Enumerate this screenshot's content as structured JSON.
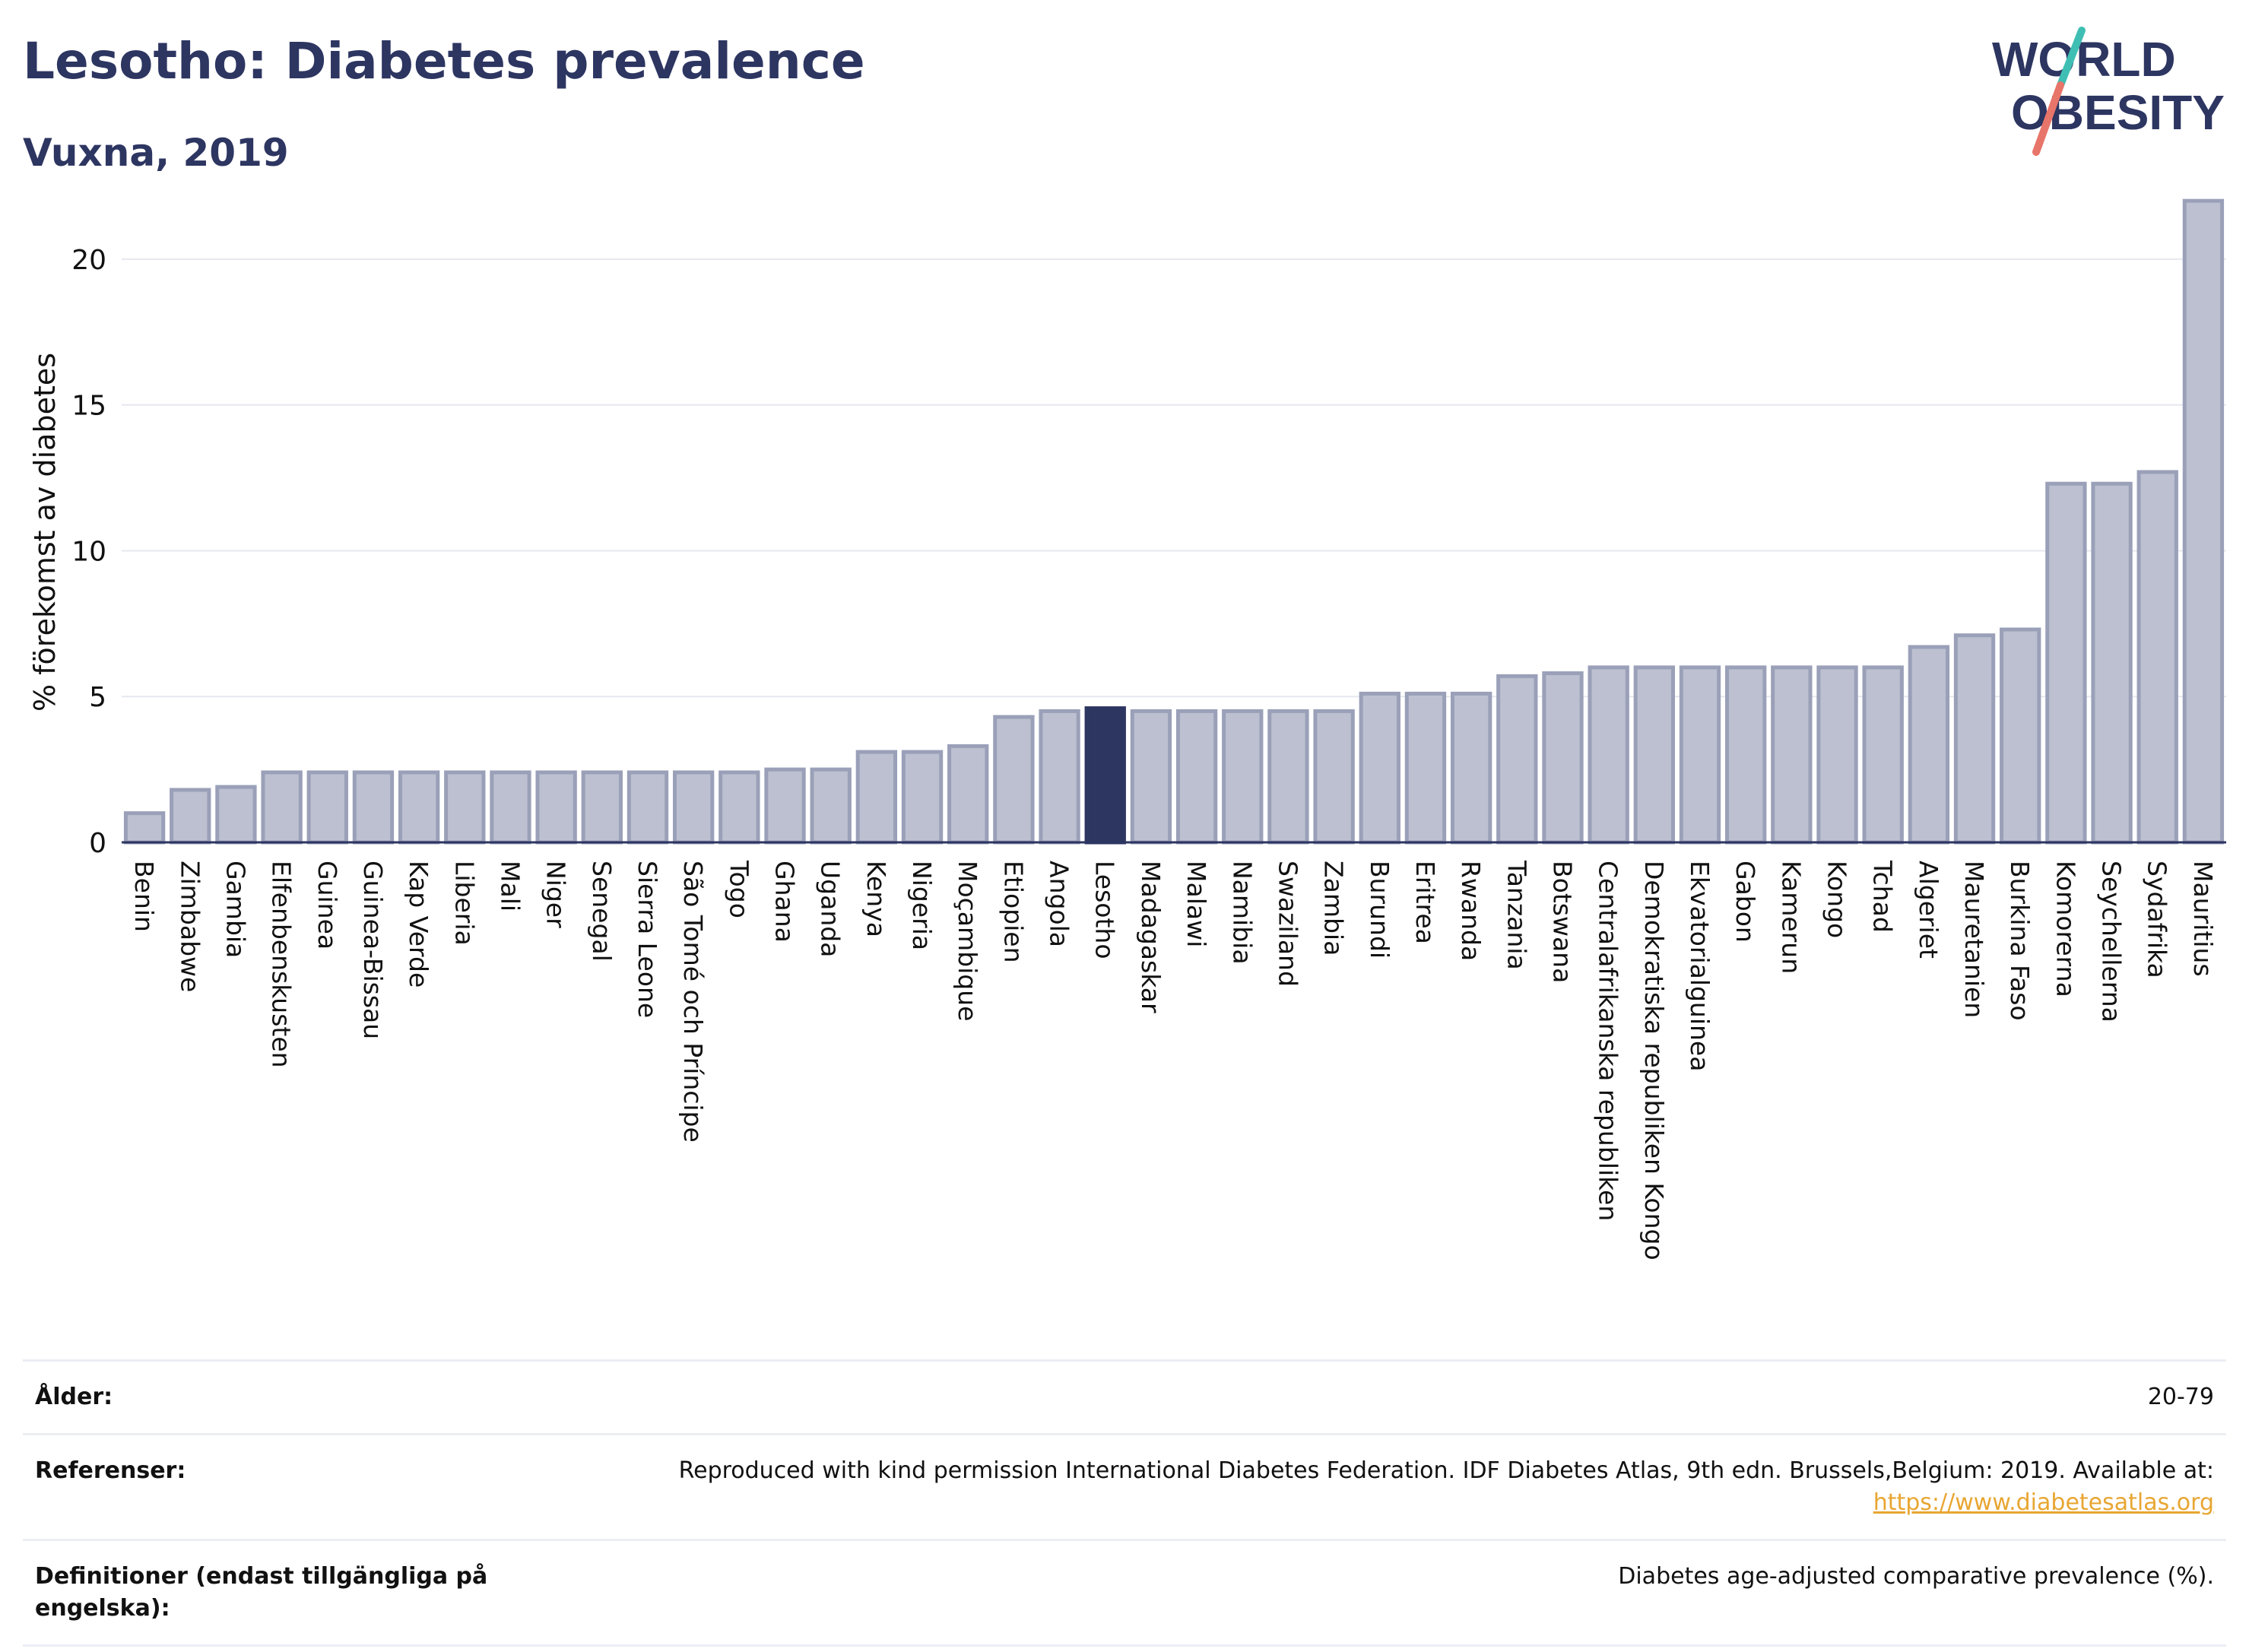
{
  "header": {
    "title": "Lesotho: Diabetes prevalence",
    "subtitle": "Vuxna, 2019",
    "logo_line1": "WORLD",
    "logo_line2": "OBESITY"
  },
  "colors": {
    "bar": "#bcc0d0",
    "bar_border": "#9aa0b8",
    "highlight": "#2d3561",
    "grid": "#e6e8ef",
    "logo_teal": "#3fbfb3",
    "logo_coral": "#e8756a",
    "link": "#e8a632"
  },
  "chart_data": {
    "type": "bar",
    "ylabel": "% förekomst av diabetes",
    "ylim": [
      0,
      22.5
    ],
    "yticks": [
      0,
      5,
      10,
      15,
      20
    ],
    "grid": true,
    "highlight": "Lesotho",
    "categories": [
      "Benin",
      "Zimbabwe",
      "Gambia",
      "Elfenbenskusten",
      "Guinea",
      "Guinea-Bissau",
      "Kap Verde",
      "Liberia",
      "Mali",
      "Niger",
      "Senegal",
      "Sierra Leone",
      "São Tomé och Príncipe",
      "Togo",
      "Ghana",
      "Uganda",
      "Kenya",
      "Nigeria",
      "Moçambique",
      "Etiopien",
      "Angola",
      "Lesotho",
      "Madagaskar",
      "Malawi",
      "Namibia",
      "Swaziland",
      "Zambia",
      "Burundi",
      "Eritrea",
      "Rwanda",
      "Tanzania",
      "Botswana",
      "Centralafrikanska republiken",
      "Demokratiska republiken Kongo",
      "Ekvatorialguinea",
      "Gabon",
      "Kamerun",
      "Kongo",
      "Tchad",
      "Algeriet",
      "Mauretanien",
      "Burkina Faso",
      "Komorerna",
      "Seychellerna",
      "Sydafrika",
      "Mauritius"
    ],
    "values": [
      1.0,
      1.8,
      1.9,
      2.4,
      2.4,
      2.4,
      2.4,
      2.4,
      2.4,
      2.4,
      2.4,
      2.4,
      2.4,
      2.4,
      2.5,
      2.5,
      3.1,
      3.1,
      3.3,
      4.3,
      4.5,
      4.6,
      4.5,
      4.5,
      4.5,
      4.5,
      4.5,
      5.1,
      5.1,
      5.1,
      5.7,
      5.8,
      6.0,
      6.0,
      6.0,
      6.0,
      6.0,
      6.0,
      6.0,
      6.7,
      7.1,
      7.3,
      12.3,
      12.3,
      12.7,
      22.0
    ]
  },
  "metadata": {
    "age_label": "Ålder:",
    "age_value": "20-79",
    "refs_label": "Referenser:",
    "refs_value": "Reproduced with kind permission International Diabetes Federation. IDF Diabetes Atlas, 9th edn. Brussels,Belgium: 2019. Available at:",
    "refs_link": "https://www.diabetesatlas.org",
    "defs_label": "Definitioner (endast tillgängliga på engelska):",
    "defs_value": "Diabetes age-adjusted comparative prevalence (%)."
  }
}
